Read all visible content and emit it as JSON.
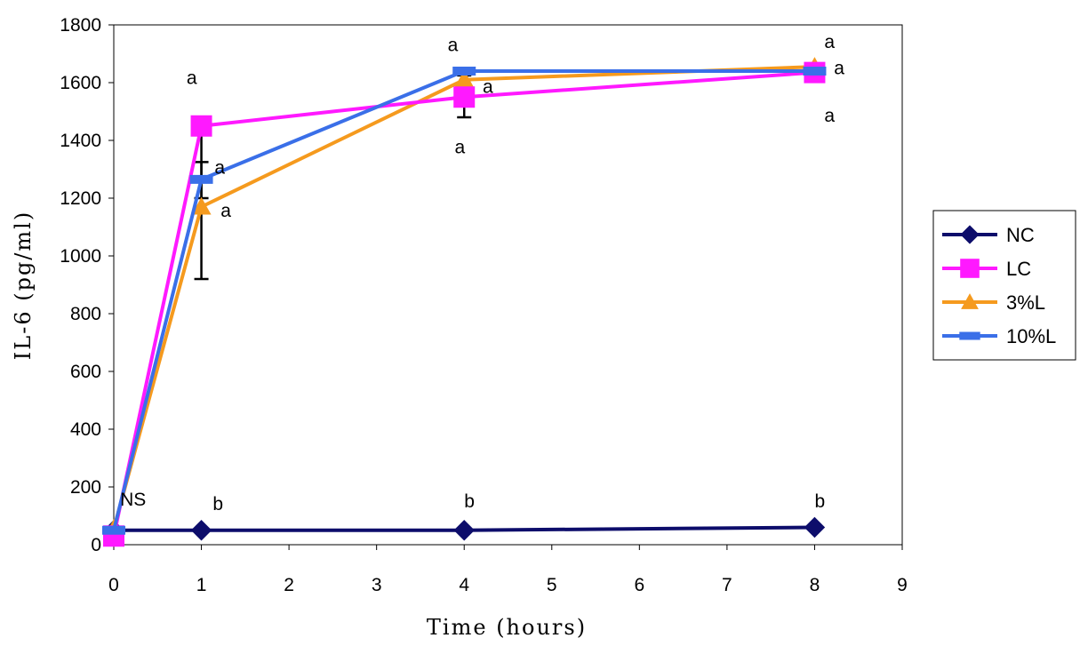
{
  "chart_data": {
    "type": "line",
    "xlabel": "Time (hours)",
    "ylabel": "IL-6 (pg/ml)",
    "xlim": [
      0,
      9
    ],
    "ylim": [
      0,
      1800
    ],
    "xticks": [
      "0",
      "1",
      "2",
      "3",
      "4",
      "5",
      "6",
      "7",
      "8",
      "9"
    ],
    "yticks": [
      "0",
      "200",
      "400",
      "600",
      "800",
      "1000",
      "1200",
      "1400",
      "1600",
      "1800"
    ],
    "x": [
      0,
      1,
      4,
      8
    ],
    "series": [
      {
        "name": "NC",
        "color": "#0d0d6b",
        "marker": "diamond",
        "values": [
          50,
          50,
          50,
          60
        ]
      },
      {
        "name": "LC",
        "color": "#ff19ff",
        "marker": "square",
        "values": [
          30,
          1450,
          1550,
          1635
        ]
      },
      {
        "name": "3%L",
        "color": "#f59a1e",
        "marker": "triangle",
        "values": [
          55,
          1170,
          1610,
          1655
        ]
      },
      {
        "name": "10%L",
        "color": "#3a6fe8",
        "marker": "dash",
        "values": [
          50,
          1265,
          1640,
          1640
        ]
      }
    ],
    "error_bars": [
      {
        "x": 1,
        "low": 920,
        "high": 1420
      },
      {
        "x": 1,
        "low": 1200,
        "high": 1325
      },
      {
        "x": 4,
        "low": 1480,
        "high": 1625
      }
    ],
    "annotations": [
      {
        "text": "NS",
        "x": 0.22,
        "y": 135
      },
      {
        "text": "b",
        "x": 1.19,
        "y": 120
      },
      {
        "text": "b",
        "x": 4.06,
        "y": 130
      },
      {
        "text": "b",
        "x": 8.06,
        "y": 130
      },
      {
        "text": "a",
        "x": 0.89,
        "y": 1595
      },
      {
        "text": "a",
        "x": 1.21,
        "y": 1285
      },
      {
        "text": "a",
        "x": 1.28,
        "y": 1135
      },
      {
        "text": "a",
        "x": 3.87,
        "y": 1710
      },
      {
        "text": "a",
        "x": 4.27,
        "y": 1565
      },
      {
        "text": "a",
        "x": 3.95,
        "y": 1355
      },
      {
        "text": "a",
        "x": 8.17,
        "y": 1720
      },
      {
        "text": "a",
        "x": 8.28,
        "y": 1630
      },
      {
        "text": "a",
        "x": 8.17,
        "y": 1465
      }
    ],
    "legend_position": "right"
  }
}
